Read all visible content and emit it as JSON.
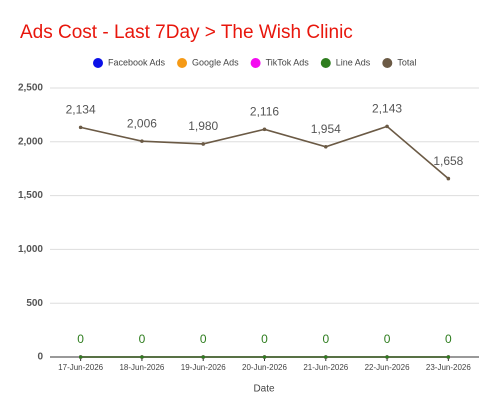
{
  "chart_data": {
    "type": "line",
    "title": "Ads Cost - Last 7Day > The Wish Clinic",
    "title_color": "#e8160c",
    "x_label": "Date",
    "categories": [
      "17-Jun-2026",
      "18-Jun-2026",
      "19-Jun-2026",
      "20-Jun-2026",
      "21-Jun-2026",
      "22-Jun-2026",
      "23-Jun-2026"
    ],
    "series": [
      {
        "name": "Facebook Ads",
        "color": "#0b10e8",
        "values": [
          0,
          0,
          0,
          0,
          0,
          0,
          0
        ]
      },
      {
        "name": "Google Ads",
        "color": "#f59a16",
        "values": [
          0,
          0,
          0,
          0,
          0,
          0,
          0
        ]
      },
      {
        "name": "TikTok Ads",
        "color": "#f40cf0",
        "values": [
          0,
          0,
          0,
          0,
          0,
          0,
          0
        ]
      },
      {
        "name": "Total",
        "color": "#6b5a45",
        "values": [
          2134,
          2006,
          1980,
          2116,
          1954,
          2143,
          1658
        ],
        "value_labels": [
          "2,134",
          "2,006",
          "1,980",
          "2,116",
          "1,954",
          "2,143",
          "1,658"
        ],
        "data_labels": true
      },
      {
        "name": "Line Ads",
        "color": "#2e7d1e",
        "values": [
          0,
          0,
          0,
          0,
          0,
          0,
          0
        ],
        "data_labels": true
      }
    ],
    "legend_order": [
      "Facebook Ads",
      "Google Ads",
      "TikTok Ads",
      "Line Ads",
      "Total"
    ],
    "legend_position": "top",
    "ylim": [
      0,
      2500
    ],
    "yticks": [
      0,
      500,
      {
        "value": 1000,
        "label": "1,000"
      },
      {
        "value": 1500,
        "label": "1,500"
      },
      {
        "value": 2000,
        "label": "2,000"
      },
      {
        "value": 2500,
        "label": "2,500"
      }
    ],
    "grid": true
  }
}
